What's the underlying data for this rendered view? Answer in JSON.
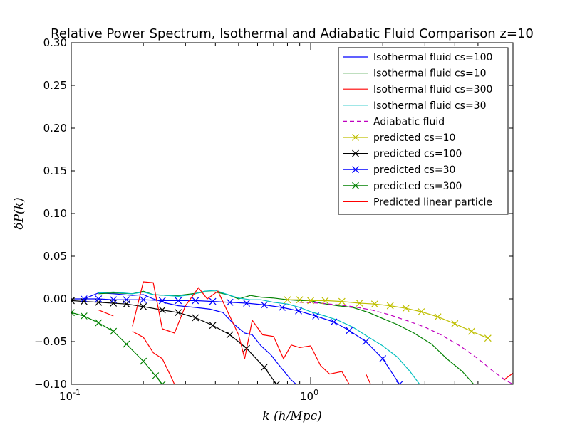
{
  "chart_data": {
    "type": "line",
    "title": "Relative Power Spectrum, Isothermal and Adiabatic Fluid Comparison z=10",
    "xlabel": "k (h/Mpc)",
    "ylabel": "δP(k)",
    "xscale": "log",
    "xlim": [
      0.1,
      7.0
    ],
    "ylim": [
      -0.1,
      0.3
    ],
    "xticks": [
      {
        "value": 0.1,
        "label": "10",
        "exp": "-1"
      },
      {
        "value": 1.0,
        "label": "10",
        "exp": "0"
      }
    ],
    "yticks": [
      {
        "value": -0.1,
        "label": "−0.10"
      },
      {
        "value": -0.05,
        "label": "−0.05"
      },
      {
        "value": 0.0,
        "label": "0.00"
      },
      {
        "value": 0.05,
        "label": "0.05"
      },
      {
        "value": 0.1,
        "label": "0.10"
      },
      {
        "value": 0.15,
        "label": "0.15"
      },
      {
        "value": 0.2,
        "label": "0.20"
      },
      {
        "value": 0.25,
        "label": "0.25"
      },
      {
        "value": 0.3,
        "label": "0.30"
      }
    ],
    "grid": false,
    "legend_position": "top-right",
    "series": [
      {
        "name": "Isothermal fluid cs=100",
        "color": "#0000ff",
        "style": "solid",
        "marker": "none",
        "points": [
          [
            0.1,
            0.0
          ],
          [
            0.113,
            0.0
          ],
          [
            0.13,
            0.007
          ],
          [
            0.15,
            0.006
          ],
          [
            0.18,
            0.004
          ],
          [
            0.2,
            0.005
          ],
          [
            0.22,
            0.0
          ],
          [
            0.25,
            -0.005
          ],
          [
            0.28,
            -0.008
          ],
          [
            0.33,
            -0.01
          ],
          [
            0.38,
            -0.012
          ],
          [
            0.43,
            -0.016
          ],
          [
            0.48,
            -0.03
          ],
          [
            0.53,
            -0.04
          ],
          [
            0.57,
            -0.042
          ],
          [
            0.62,
            -0.055
          ],
          [
            0.68,
            -0.065
          ],
          [
            0.75,
            -0.08
          ],
          [
            0.83,
            -0.095
          ],
          [
            0.87,
            -0.1
          ]
        ]
      },
      {
        "name": "Isothermal fluid cs=10",
        "color": "#008000",
        "style": "solid",
        "marker": "none",
        "points": [
          [
            0.13,
            0.006
          ],
          [
            0.15,
            0.007
          ],
          [
            0.18,
            0.006
          ],
          [
            0.2,
            0.009
          ],
          [
            0.22,
            0.005
          ],
          [
            0.25,
            0.004
          ],
          [
            0.28,
            0.004
          ],
          [
            0.32,
            0.006
          ],
          [
            0.36,
            0.008
          ],
          [
            0.4,
            0.008
          ],
          [
            0.45,
            0.005
          ],
          [
            0.5,
            0.0
          ],
          [
            0.56,
            0.004
          ],
          [
            0.62,
            0.002
          ],
          [
            0.7,
            0.001
          ],
          [
            0.8,
            -0.001
          ],
          [
            0.9,
            -0.002
          ],
          [
            1.0,
            -0.002
          ],
          [
            1.1,
            -0.005
          ],
          [
            1.3,
            -0.008
          ],
          [
            1.5,
            -0.01
          ],
          [
            1.75,
            -0.016
          ],
          [
            2.0,
            -0.023
          ],
          [
            2.3,
            -0.03
          ],
          [
            2.7,
            -0.04
          ],
          [
            3.2,
            -0.053
          ],
          [
            3.7,
            -0.07
          ],
          [
            4.3,
            -0.085
          ],
          [
            4.8,
            -0.1
          ]
        ]
      },
      {
        "name": "Isothermal fluid cs=300",
        "color": "#ff0000",
        "style": "solid",
        "marker": "none",
        "segments": [
          [
            [
              0.13,
              -0.013
            ],
            [
              0.15,
              -0.02
            ]
          ],
          [
            [
              0.18,
              -0.038
            ],
            [
              0.2,
              -0.045
            ],
            [
              0.22,
              -0.063
            ],
            [
              0.24,
              -0.07
            ],
            [
              0.26,
              -0.09
            ],
            [
              0.27,
              -0.1
            ]
          ]
        ]
      },
      {
        "name": "Isothermal fluid cs=30",
        "color": "#00bfbf",
        "style": "solid",
        "marker": "none",
        "points": [
          [
            0.13,
            0.007
          ],
          [
            0.15,
            0.008
          ],
          [
            0.18,
            0.006
          ],
          [
            0.2,
            0.008
          ],
          [
            0.22,
            0.005
          ],
          [
            0.25,
            0.004
          ],
          [
            0.28,
            0.003
          ],
          [
            0.32,
            0.005
          ],
          [
            0.36,
            0.009
          ],
          [
            0.4,
            0.01
          ],
          [
            0.45,
            0.005
          ],
          [
            0.5,
            0.001
          ],
          [
            0.56,
            -0.001
          ],
          [
            0.62,
            -0.001
          ],
          [
            0.7,
            -0.004
          ],
          [
            0.8,
            -0.006
          ],
          [
            0.9,
            -0.01
          ],
          [
            1.0,
            -0.015
          ],
          [
            1.15,
            -0.02
          ],
          [
            1.3,
            -0.025
          ],
          [
            1.5,
            -0.033
          ],
          [
            1.75,
            -0.045
          ],
          [
            2.0,
            -0.055
          ],
          [
            2.3,
            -0.068
          ],
          [
            2.6,
            -0.085
          ],
          [
            2.85,
            -0.1
          ]
        ]
      },
      {
        "name": "Adiabatic fluid",
        "color": "#bf00bf",
        "style": "dashed",
        "marker": "none",
        "points": [
          [
            0.9,
            -0.004
          ],
          [
            1.1,
            -0.005
          ],
          [
            1.3,
            -0.007
          ],
          [
            1.5,
            -0.009
          ],
          [
            1.8,
            -0.013
          ],
          [
            2.1,
            -0.018
          ],
          [
            2.5,
            -0.025
          ],
          [
            3.0,
            -0.033
          ],
          [
            3.5,
            -0.042
          ],
          [
            4.2,
            -0.055
          ],
          [
            5.0,
            -0.07
          ],
          [
            5.8,
            -0.085
          ],
          [
            6.5,
            -0.095
          ],
          [
            7.0,
            -0.1
          ]
        ]
      },
      {
        "name": "predicted cs=10",
        "color": "#bfbf00",
        "style": "solid",
        "marker": "x",
        "points": [
          [
            0.8,
            -0.001
          ],
          [
            0.9,
            -0.001
          ],
          [
            1.0,
            -0.002
          ],
          [
            1.15,
            -0.002
          ],
          [
            1.35,
            -0.003
          ],
          [
            1.6,
            -0.005
          ],
          [
            1.85,
            -0.006
          ],
          [
            2.15,
            -0.008
          ],
          [
            2.5,
            -0.011
          ],
          [
            2.9,
            -0.015
          ],
          [
            3.4,
            -0.021
          ],
          [
            4.0,
            -0.029
          ],
          [
            4.7,
            -0.038
          ],
          [
            5.5,
            -0.046
          ]
        ]
      },
      {
        "name": "predicted cs=100",
        "color": "#000000",
        "style": "solid",
        "marker": "x",
        "points": [
          [
            0.1,
            -0.002
          ],
          [
            0.113,
            -0.003
          ],
          [
            0.13,
            -0.004
          ],
          [
            0.15,
            -0.005
          ],
          [
            0.17,
            -0.006
          ],
          [
            0.2,
            -0.009
          ],
          [
            0.24,
            -0.013
          ],
          [
            0.28,
            -0.016
          ],
          [
            0.33,
            -0.022
          ],
          [
            0.39,
            -0.031
          ],
          [
            0.46,
            -0.042
          ],
          [
            0.54,
            -0.058
          ],
          [
            0.64,
            -0.08
          ],
          [
            0.72,
            -0.1
          ]
        ]
      },
      {
        "name": "predicted cs=30",
        "color": "#0000ff",
        "style": "solid",
        "marker": "x",
        "points": [
          [
            0.113,
            0.0
          ],
          [
            0.13,
            0.0
          ],
          [
            0.15,
            -0.001
          ],
          [
            0.17,
            -0.001
          ],
          [
            0.2,
            -0.001
          ],
          [
            0.24,
            -0.002
          ],
          [
            0.28,
            -0.002
          ],
          [
            0.33,
            -0.002
          ],
          [
            0.39,
            -0.003
          ],
          [
            0.46,
            -0.004
          ],
          [
            0.54,
            -0.005
          ],
          [
            0.64,
            -0.007
          ],
          [
            0.76,
            -0.01
          ],
          [
            0.89,
            -0.014
          ],
          [
            1.05,
            -0.02
          ],
          [
            1.25,
            -0.027
          ],
          [
            1.45,
            -0.037
          ],
          [
            1.7,
            -0.05
          ],
          [
            2.0,
            -0.07
          ],
          [
            2.35,
            -0.1
          ]
        ]
      },
      {
        "name": "predicted cs=300",
        "color": "#008000",
        "style": "solid",
        "marker": "x",
        "points": [
          [
            0.1,
            -0.016
          ],
          [
            0.113,
            -0.02
          ],
          [
            0.13,
            -0.028
          ],
          [
            0.15,
            -0.038
          ],
          [
            0.17,
            -0.053
          ],
          [
            0.2,
            -0.073
          ],
          [
            0.225,
            -0.09
          ],
          [
            0.24,
            -0.1
          ]
        ]
      },
      {
        "name": "Predicted linear particle",
        "color": "#ff0000",
        "style": "solid",
        "marker": "none",
        "points": [
          [
            0.18,
            -0.032
          ],
          [
            0.2,
            0.02
          ],
          [
            0.22,
            0.019
          ],
          [
            0.24,
            -0.035
          ],
          [
            0.27,
            -0.04
          ],
          [
            0.3,
            -0.008
          ],
          [
            0.34,
            0.013
          ],
          [
            0.37,
            0.0
          ],
          [
            0.41,
            0.009
          ],
          [
            0.5,
            -0.042
          ],
          [
            0.53,
            -0.07
          ],
          [
            0.57,
            -0.025
          ],
          [
            0.63,
            -0.042
          ],
          [
            0.7,
            -0.044
          ],
          [
            0.77,
            -0.07
          ],
          [
            0.83,
            -0.054
          ],
          [
            0.9,
            -0.057
          ],
          [
            1.0,
            -0.055
          ],
          [
            1.1,
            -0.078
          ],
          [
            1.2,
            -0.088
          ],
          [
            1.35,
            -0.085
          ],
          [
            1.45,
            -0.1
          ]
        ]
      }
    ],
    "extra_segments": [
      {
        "series_index": 9,
        "color": "#ff0000",
        "points": [
          [
            1.7,
            -0.088
          ],
          [
            1.78,
            -0.1
          ]
        ]
      },
      {
        "series_index": 9,
        "color": "#ff0000",
        "points": [
          [
            6.4,
            -0.095
          ],
          [
            7.0,
            -0.087
          ]
        ]
      }
    ]
  }
}
